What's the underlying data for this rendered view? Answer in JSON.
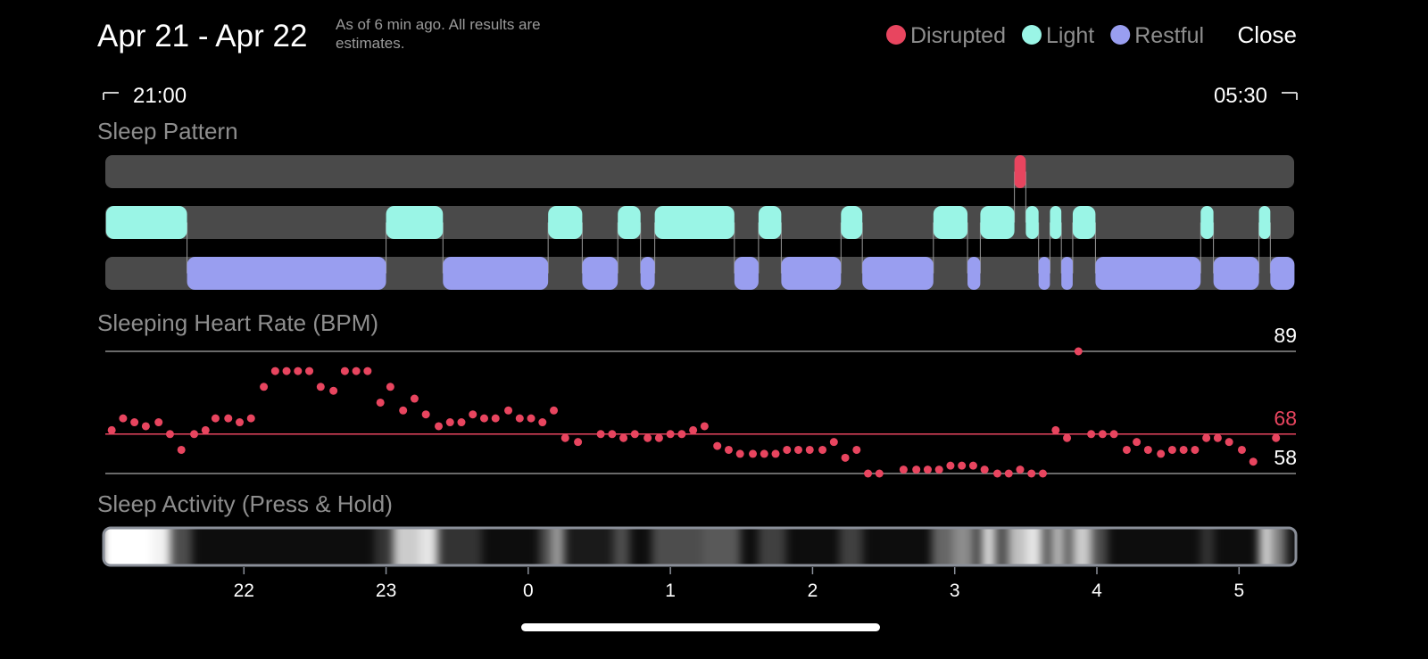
{
  "header": {
    "title": "Apr 21 - Apr 22",
    "note": "As of 6 min ago. All results are estimates.",
    "close": "Close"
  },
  "range": {
    "start": "21:00",
    "end": "05:30"
  },
  "xlim": [
    21,
    29.4
  ],
  "xticks": [
    {
      "value": 22,
      "label": "22"
    },
    {
      "value": 23,
      "label": "23"
    },
    {
      "value": 24,
      "label": "0"
    },
    {
      "value": 25,
      "label": "1"
    },
    {
      "value": 26,
      "label": "2"
    },
    {
      "value": 27,
      "label": "3"
    },
    {
      "value": 28,
      "label": "4"
    },
    {
      "value": 29,
      "label": "5"
    }
  ],
  "sleep_pattern": {
    "title": "Sleep Pattern",
    "track_color": "#4a4a4a",
    "series": [
      {
        "name": "Disrupted",
        "color": "#e8455f",
        "segments": [
          [
            27.42,
            27.5
          ]
        ]
      },
      {
        "name": "Light",
        "color": "#9af5e6",
        "segments": [
          [
            21.03,
            21.6
          ],
          [
            23.0,
            23.4
          ],
          [
            24.14,
            24.38
          ],
          [
            24.63,
            24.79
          ],
          [
            24.89,
            25.45
          ],
          [
            25.62,
            25.78
          ],
          [
            26.2,
            26.35
          ],
          [
            26.85,
            27.09
          ],
          [
            27.18,
            27.42
          ],
          [
            27.5,
            27.59
          ],
          [
            27.67,
            27.75
          ],
          [
            27.83,
            27.99
          ],
          [
            28.73,
            28.82
          ],
          [
            29.14,
            29.22
          ]
        ]
      },
      {
        "name": "Restful",
        "color": "#999ef0",
        "segments": [
          [
            21.6,
            23.0
          ],
          [
            23.4,
            24.14
          ],
          [
            24.38,
            24.63
          ],
          [
            24.79,
            24.89
          ],
          [
            25.45,
            25.62
          ],
          [
            25.78,
            26.2
          ],
          [
            26.35,
            26.85
          ],
          [
            27.09,
            27.18
          ],
          [
            27.59,
            27.67
          ],
          [
            27.75,
            27.83
          ],
          [
            27.99,
            28.73
          ],
          [
            28.82,
            29.14
          ],
          [
            29.22,
            29.39
          ]
        ]
      }
    ]
  },
  "heart_rate": {
    "title": "Sleeping Heart Rate (BPM)",
    "color": "#e8455f",
    "ylim": [
      58,
      89
    ],
    "yticks": [
      58,
      68,
      89
    ],
    "tick_colors": [
      "#ffffff",
      "#e8455f",
      "#ffffff"
    ],
    "line_colors": [
      "#8e8e8e",
      "#e8455f",
      "#8e8e8e"
    ],
    "x": [
      21.07,
      21.15,
      21.23,
      21.31,
      21.4,
      21.48,
      21.56,
      21.65,
      21.73,
      21.8,
      21.89,
      21.97,
      22.05,
      22.14,
      22.22,
      22.3,
      22.38,
      22.46,
      22.54,
      22.63,
      22.71,
      22.79,
      22.87,
      22.96,
      23.03,
      23.12,
      23.2,
      23.28,
      23.37,
      23.45,
      23.53,
      23.61,
      23.69,
      23.77,
      23.86,
      23.94,
      24.02,
      24.1,
      24.18,
      24.26,
      24.35,
      24.51,
      24.59,
      24.67,
      24.75,
      24.84,
      24.92,
      25.0,
      25.08,
      25.16,
      25.24,
      25.33,
      25.41,
      25.49,
      25.58,
      25.66,
      25.74,
      25.82,
      25.9,
      25.98,
      26.07,
      26.15,
      26.23,
      26.31,
      26.39,
      26.47,
      26.64,
      26.73,
      26.81,
      26.89,
      26.97,
      27.05,
      27.13,
      27.21,
      27.3,
      27.38,
      27.46,
      27.54,
      27.62,
      27.71,
      27.79,
      27.87,
      27.96,
      28.04,
      28.12,
      28.21,
      28.28,
      28.36,
      28.45,
      28.53,
      28.61,
      28.69,
      28.77,
      28.85,
      28.93,
      29.02,
      29.1,
      29.26
    ],
    "values": [
      69,
      72,
      71,
      70,
      71,
      68,
      64,
      68,
      69,
      72,
      72,
      71,
      72,
      80,
      84,
      84,
      84,
      84,
      80,
      79,
      84,
      84,
      84,
      76,
      80,
      74,
      77,
      73,
      70,
      71,
      71,
      73,
      72,
      72,
      74,
      72,
      72,
      71,
      74,
      67,
      66,
      68,
      68,
      67,
      68,
      67,
      67,
      68,
      68,
      69,
      70,
      65,
      64,
      63,
      63,
      63,
      63,
      64,
      64,
      64,
      64,
      66,
      62,
      64,
      58,
      58,
      59,
      59,
      59,
      59,
      60,
      60,
      60,
      59,
      58,
      58,
      59,
      58,
      58,
      69,
      67,
      89,
      68,
      68,
      68,
      64,
      66,
      64,
      63,
      64,
      64,
      64,
      67,
      67,
      66,
      64,
      61,
      67
    ]
  },
  "activity": {
    "title": "Sleep Activity (Press & Hold)",
    "x": [
      21.0,
      21.35,
      21.48,
      21.63,
      22.92,
      23.05,
      23.24,
      23.36,
      23.67,
      24.08,
      24.16,
      24.25,
      24.6,
      24.71,
      24.87,
      25.24,
      25.49,
      25.62,
      25.81,
      26.19,
      26.35,
      26.84,
      26.99,
      27.13,
      27.19,
      27.28,
      27.38,
      27.5,
      27.61,
      27.68,
      27.77,
      27.83,
      27.96,
      28.07,
      28.73,
      28.82,
      29.14,
      29.23,
      29.32
    ],
    "values": [
      1.0,
      0.95,
      0.3,
      0.05,
      0.2,
      0.8,
      0.9,
      0.2,
      0.05,
      0.3,
      0.6,
      0.1,
      0.3,
      0.05,
      0.3,
      0.35,
      0.05,
      0.25,
      0.05,
      0.25,
      0.05,
      0.4,
      0.55,
      0.2,
      0.85,
      0.3,
      0.75,
      0.9,
      0.3,
      0.7,
      0.3,
      0.8,
      0.3,
      0.05,
      0.2,
      0.05,
      0.8,
      0.5,
      0.1
    ]
  }
}
